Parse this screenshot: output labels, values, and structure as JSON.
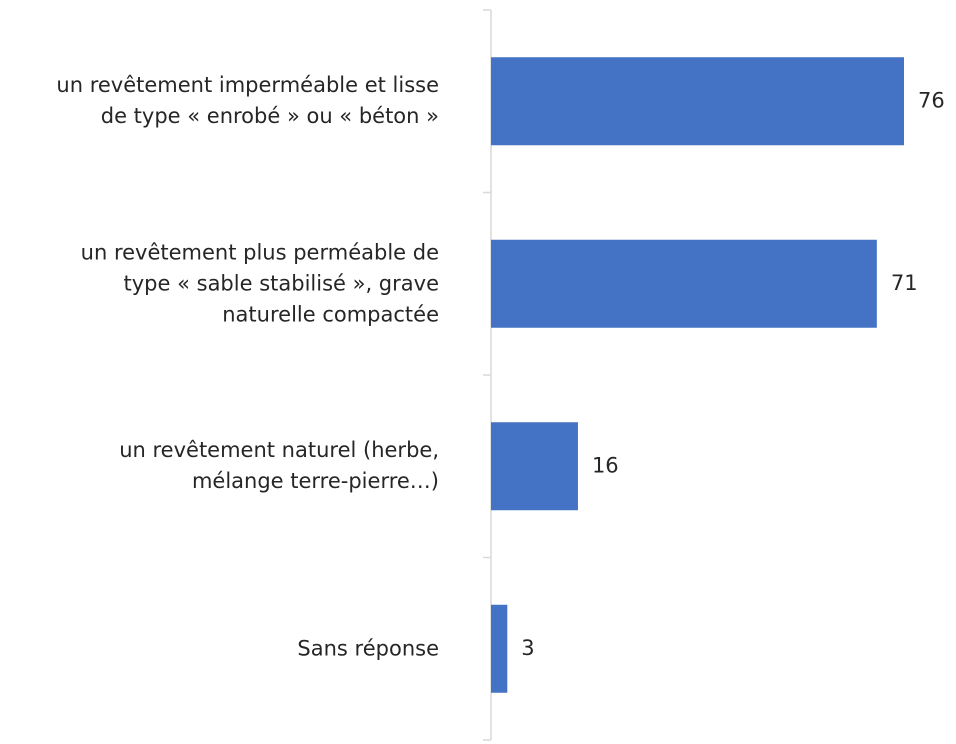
{
  "chart_data": {
    "type": "bar",
    "orientation": "horizontal",
    "categories": [
      "un revêtement imperméable et lisse\nde type « enrobé » ou « béton »",
      "un revêtement plus perméable de\ntype « sable stabilisé », grave\nnaturelle compactée",
      "un revêtement naturel (herbe,\nmélange terre-pierre…)",
      "Sans réponse"
    ],
    "values": [
      76,
      71,
      16,
      3
    ],
    "color": "#4472c4"
  }
}
